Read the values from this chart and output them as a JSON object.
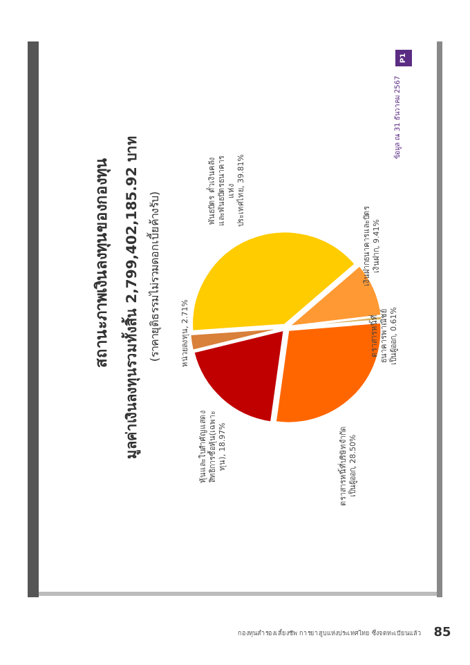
{
  "chart_data": {
    "type": "pie",
    "title": "สถานะภาพเงินลงทุนของกองทุน",
    "subtitle": "มูลค่าเงินลงทุนรวมทั้งสิ้น 2,799,402,185.92 บาท",
    "annotations": [
      "(ราคายุติธรรมไม่รวมดอกเบี้ยค้างรับ)",
      "ข้อมูล ณ 31 ธันวาคม 2567",
      "P1",
      "กองทุนสำรองเลี้ยงชีพ การยาสูบแห่งประเทศไทย ซึ่งจดทะเบียนแล้ว",
      "85"
    ],
    "categories": [
      "พันธบัตร ตั๋วเงินคลัง และพันธบัตรธนาคารแห่งประเทศไทย",
      "เงินฝากธนาคารและบัตรเงินฝาก",
      "ตราสารหนี้ที่ธนาคารพาณิชย์เป็นผู้ออก",
      "ตราสารหนี้ที่บริษัทจำกัดเป็นผู้ออก",
      "หุ้นและใบสำคัญแสดงสิทธิการซื้อหุ้น(เฉพาะทุน)",
      "หน่วยลงทุน"
    ],
    "values": [
      39.81,
      9.41,
      0.61,
      28.5,
      18.97,
      2.71
    ],
    "value_labels": [
      "39.81%",
      "9.41%",
      "0.61%",
      "28.50%",
      "18.97%",
      "2.71%"
    ],
    "colors": [
      "#ffcc00",
      "#ff9933",
      "#d9b15a",
      "#ff6600",
      "#c00000",
      "#d9803a"
    ]
  }
}
